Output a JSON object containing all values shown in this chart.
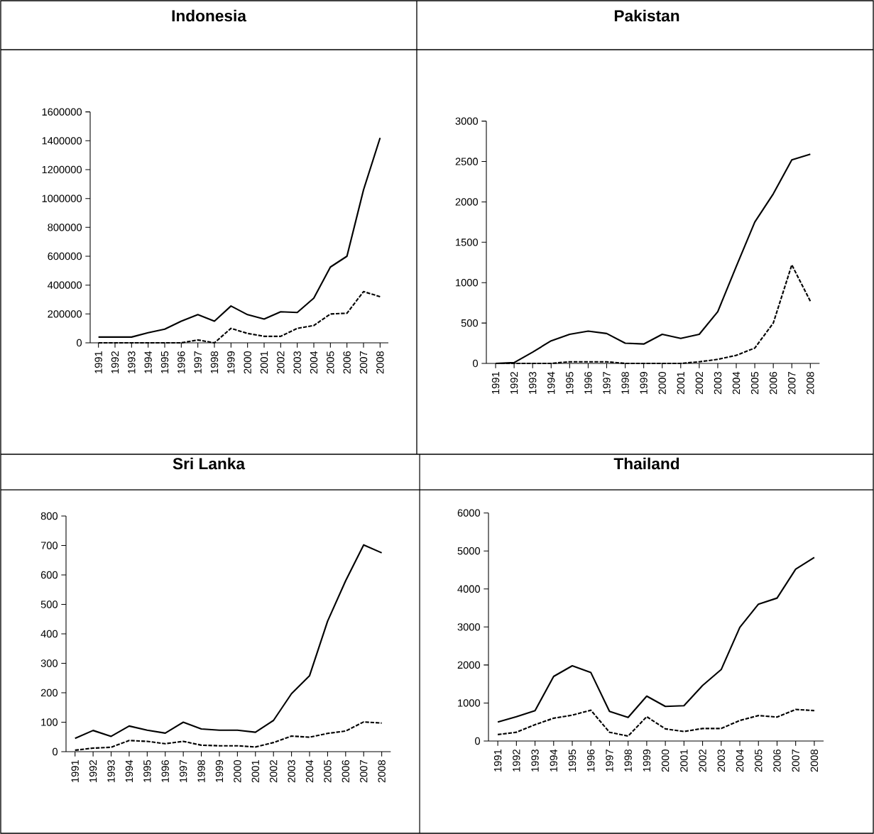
{
  "chart_data": [
    {
      "type": "line",
      "title": "Indonesia",
      "categories": [
        "1991",
        "1992",
        "1993",
        "1994",
        "1995",
        "1996",
        "1997",
        "1998",
        "1999",
        "2000",
        "2001",
        "2002",
        "2003",
        "2004",
        "2005",
        "2006",
        "2007",
        "2008"
      ],
      "ylim": [
        0,
        1600000
      ],
      "yticks": [
        0,
        200000,
        400000,
        600000,
        800000,
        1000000,
        1200000,
        1400000,
        1600000
      ],
      "marker": "none",
      "series": [
        {
          "color": "#000000",
          "line_style": "solid",
          "values": [
            40000,
            40000,
            40000,
            70000,
            95000,
            150000,
            195000,
            150000,
            255000,
            195000,
            165000,
            215000,
            210000,
            310000,
            525000,
            600000,
            1060000,
            1420000
          ]
        },
        {
          "color": "#000000",
          "line_style": "dashed",
          "values": [
            0,
            0,
            0,
            0,
            0,
            0,
            20000,
            0,
            100000,
            65000,
            45000,
            45000,
            100000,
            120000,
            200000,
            205000,
            355000,
            320000
          ]
        }
      ]
    },
    {
      "type": "line",
      "title": "Pakistan",
      "categories": [
        "1991",
        "1992",
        "1993",
        "1994",
        "1995",
        "1996",
        "1997",
        "1998",
        "1999",
        "2000",
        "2001",
        "2002",
        "2003",
        "2004",
        "2005",
        "2006",
        "2007",
        "2008"
      ],
      "ylim": [
        0,
        3000
      ],
      "yticks": [
        0,
        500,
        1000,
        1500,
        2000,
        2500,
        3000
      ],
      "marker": "none",
      "series": [
        {
          "color": "#000000",
          "line_style": "solid",
          "values": [
            0,
            10,
            140,
            280,
            360,
            400,
            370,
            250,
            240,
            360,
            310,
            360,
            640,
            1200,
            1750,
            2100,
            2520,
            2590
          ]
        },
        {
          "color": "#000000",
          "line_style": "dashed",
          "values": [
            0,
            0,
            0,
            0,
            20,
            20,
            20,
            0,
            0,
            0,
            0,
            20,
            50,
            100,
            190,
            500,
            1220,
            770
          ]
        }
      ]
    },
    {
      "type": "line",
      "title": "Sri Lanka",
      "categories": [
        "1991",
        "1992",
        "1993",
        "1994",
        "1995",
        "1996",
        "1997",
        "1998",
        "1999",
        "2000",
        "2001",
        "2002",
        "2003",
        "2004",
        "2005",
        "2006",
        "2007",
        "2008"
      ],
      "ylim": [
        0,
        800
      ],
      "yticks": [
        0,
        100,
        200,
        300,
        400,
        500,
        600,
        700,
        800
      ],
      "marker": "none",
      "series": [
        {
          "color": "#000000",
          "line_style": "solid",
          "values": [
            45,
            72,
            52,
            87,
            73,
            63,
            100,
            77,
            73,
            73,
            66,
            106,
            197,
            258,
            443,
            580,
            702,
            675
          ]
        },
        {
          "color": "#000000",
          "line_style": "dashed",
          "values": [
            5,
            12,
            15,
            38,
            35,
            27,
            35,
            22,
            20,
            20,
            16,
            31,
            53,
            49,
            62,
            70,
            101,
            97
          ]
        }
      ]
    },
    {
      "type": "line",
      "title": "Thailand",
      "categories": [
        "1991",
        "1992",
        "1993",
        "1994",
        "1995",
        "1996",
        "1997",
        "1998",
        "1999",
        "2000",
        "2001",
        "2002",
        "2003",
        "2004",
        "2005",
        "2006",
        "2007",
        "2008"
      ],
      "ylim": [
        0,
        6000
      ],
      "yticks": [
        0,
        1000,
        2000,
        3000,
        4000,
        5000,
        6000
      ],
      "marker": "none",
      "series": [
        {
          "color": "#000000",
          "line_style": "solid",
          "values": [
            500,
            640,
            800,
            1700,
            1980,
            1800,
            780,
            620,
            1180,
            910,
            930,
            1460,
            1880,
            2990,
            3600,
            3760,
            4520,
            4830
          ]
        },
        {
          "color": "#000000",
          "line_style": "dashed",
          "values": [
            170,
            230,
            430,
            600,
            680,
            810,
            230,
            130,
            640,
            320,
            250,
            330,
            330,
            540,
            670,
            630,
            830,
            800
          ]
        }
      ]
    }
  ]
}
